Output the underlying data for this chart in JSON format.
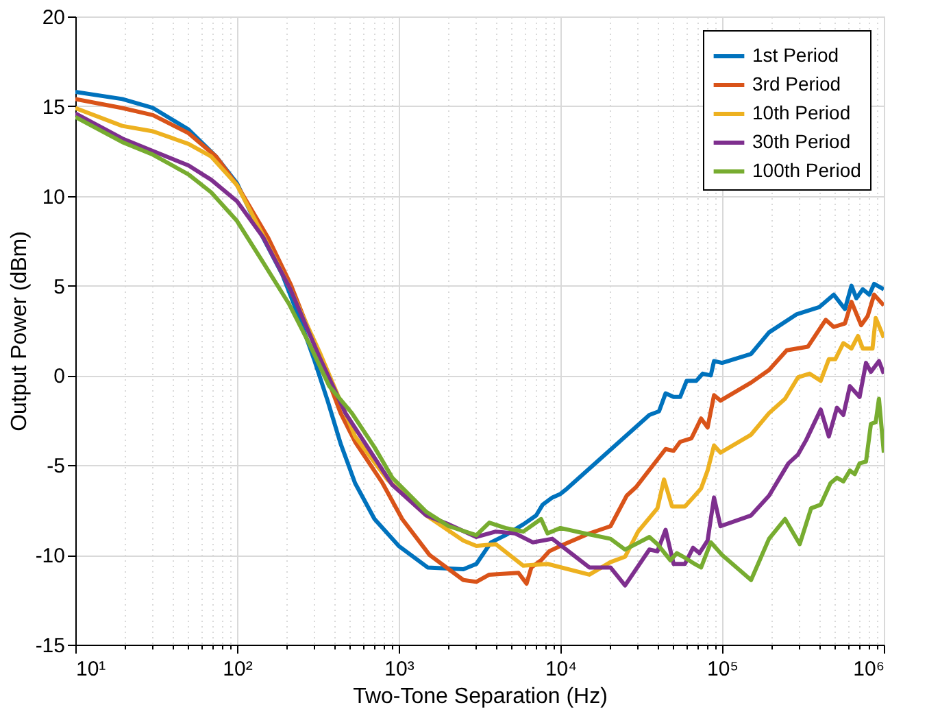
{
  "chart_data": {
    "type": "line",
    "xlabel": "Two-Tone Separation (Hz)",
    "ylabel": "Output Power (dBm)",
    "log": "x",
    "grid": true,
    "legend": "top right",
    "line_style": "solid",
    "xlim": [
      10,
      1000000
    ],
    "xticks": [
      {
        "value": 10,
        "label": "10¹"
      },
      {
        "value": 20,
        "label": null
      },
      {
        "value": 30,
        "label": null
      },
      {
        "value": 40,
        "label": null
      },
      {
        "value": 50,
        "label": null
      },
      {
        "value": 60,
        "label": null
      },
      {
        "value": 70,
        "label": null
      },
      {
        "value": 80,
        "label": null
      },
      {
        "value": 90,
        "label": null
      },
      {
        "value": 100,
        "label": "10²"
      },
      {
        "value": 200,
        "label": null
      },
      {
        "value": 300,
        "label": null
      },
      {
        "value": 400,
        "label": null
      },
      {
        "value": 500,
        "label": null
      },
      {
        "value": 600,
        "label": null
      },
      {
        "value": 700,
        "label": null
      },
      {
        "value": 800,
        "label": null
      },
      {
        "value": 900,
        "label": null
      },
      {
        "value": 1000,
        "label": "10³"
      },
      {
        "value": 2000,
        "label": null
      },
      {
        "value": 3000,
        "label": null
      },
      {
        "value": 4000,
        "label": null
      },
      {
        "value": 5000,
        "label": null
      },
      {
        "value": 6000,
        "label": null
      },
      {
        "value": 7000,
        "label": null
      },
      {
        "value": 8000,
        "label": null
      },
      {
        "value": 9000,
        "label": null
      },
      {
        "value": 10000,
        "label": "10⁴"
      },
      {
        "value": 20000,
        "label": null
      },
      {
        "value": 30000,
        "label": null
      },
      {
        "value": 40000,
        "label": null
      },
      {
        "value": 50000,
        "label": null
      },
      {
        "value": 60000,
        "label": null
      },
      {
        "value": 70000,
        "label": null
      },
      {
        "value": 80000,
        "label": null
      },
      {
        "value": 90000,
        "label": null
      },
      {
        "value": 100000,
        "label": "10⁵"
      },
      {
        "value": 200000,
        "label": null
      },
      {
        "value": 300000,
        "label": null
      },
      {
        "value": 400000,
        "label": null
      },
      {
        "value": 500000,
        "label": null
      },
      {
        "value": 600000,
        "label": null
      },
      {
        "value": 700000,
        "label": null
      },
      {
        "value": 800000,
        "label": null
      },
      {
        "value": 900000,
        "label": null
      },
      {
        "value": 1000000,
        "label": "10⁶"
      }
    ],
    "ylim": [
      -15,
      20
    ],
    "yticks": [
      -15,
      -10,
      -5,
      0,
      5,
      10,
      15,
      20
    ],
    "series": [
      {
        "name": "1st Period",
        "color": "#0072bd",
        "x": [
          10,
          19.5,
          30.2,
          50.1,
          74.1,
          100,
          135,
          191,
          245,
          302,
          363,
          437,
          537,
          708,
          1000,
          1510,
          2510,
          3020,
          3720,
          4570,
          5890,
          7080,
          7760,
          8910,
          10000,
          11000,
          35500,
          40700,
          44700,
          50100,
          55000,
          60300,
          69200,
          75900,
          85100,
          89100,
          100000,
          151000,
          195000,
          288000,
          398000,
          490000,
          575000,
          631000,
          676000,
          741000,
          813000,
          871000,
          1000000
        ],
        "values": [
          15.8,
          15.4,
          14.9,
          13.7,
          12.2,
          10.7,
          8.2,
          5.6,
          3.1,
          0.8,
          -1.4,
          -3.8,
          -6,
          -8,
          -9.5,
          -10.7,
          -10.8,
          -10.5,
          -9.3,
          -8.9,
          -8.3,
          -7.8,
          -7.2,
          -6.8,
          -6.6,
          -6.3,
          -2.2,
          -2.0,
          -1.0,
          -1.2,
          -1.2,
          -0.3,
          -0.3,
          0.1,
          0,
          0.8,
          0.7,
          1.2,
          2.4,
          3.4,
          3.8,
          4.5,
          3.7,
          5.0,
          4.3,
          4.8,
          4.5,
          5.1,
          4.8
        ]
      },
      {
        "name": "3rd Period",
        "color": "#d95319",
        "x": [
          10,
          19.5,
          30.2,
          50.1,
          74.1,
          100,
          155,
          214,
          324,
          437,
          537,
          794,
          1050,
          1550,
          2510,
          3020,
          3630,
          5500,
          6170,
          6610,
          7590,
          8510,
          10000,
          15100,
          20400,
          25700,
          29500,
          44700,
          50100,
          55000,
          64600,
          74100,
          81300,
          89100,
          97700,
          151000,
          195000,
          251000,
          339000,
          437000,
          490000,
          575000,
          631000,
          724000,
          794000,
          871000,
          1000000
        ],
        "values": [
          15.4,
          14.9,
          14.5,
          13.5,
          12.2,
          10.6,
          7.7,
          5.1,
          1.0,
          -2.1,
          -3.7,
          -6,
          -8,
          -10,
          -11.4,
          -11.5,
          -11.1,
          -11,
          -11.6,
          -10.7,
          -10.3,
          -9.8,
          -9.5,
          -8.8,
          -8.4,
          -6.7,
          -6.2,
          -4.1,
          -4.2,
          -3.7,
          -3.5,
          -2.4,
          -2.9,
          -1.1,
          -1.4,
          -0.4,
          0.3,
          1.4,
          1.6,
          3.1,
          2.7,
          2.9,
          4.1,
          2.8,
          3.3,
          4.5,
          3.9
        ]
      },
      {
        "name": "10th Period",
        "color": "#edb120",
        "x": [
          10,
          19.5,
          30.2,
          50.1,
          69.2,
          100,
          145,
          214,
          324,
          468,
          537,
          851,
          1480,
          2510,
          3020,
          3980,
          5890,
          8320,
          15100,
          20400,
          25100,
          30200,
          39800,
          43700,
          49000,
          58900,
          66100,
          74100,
          81300,
          89100,
          97700,
          151000,
          195000,
          245000,
          295000,
          347000,
          407000,
          457000,
          501000,
          562000,
          631000,
          692000,
          741000,
          851000,
          891000,
          1000000
        ],
        "values": [
          14.9,
          13.9,
          13.6,
          12.9,
          12.2,
          10.6,
          7.8,
          4.8,
          1.3,
          -2.1,
          -3.4,
          -5.8,
          -7.8,
          -9.2,
          -9.5,
          -9.4,
          -10.6,
          -10.5,
          -11.1,
          -10.4,
          -10.1,
          -8.7,
          -7.4,
          -5.8,
          -7.3,
          -7.3,
          -6.8,
          -6.3,
          -5.3,
          -3.9,
          -4.3,
          -3.3,
          -2.1,
          -1.3,
          -0.1,
          0.1,
          -0.3,
          0.9,
          0.9,
          1.8,
          1.5,
          2.2,
          1.5,
          1.5,
          3.2,
          2.1
        ]
      },
      {
        "name": "30th Period",
        "color": "#7e2f8e",
        "x": [
          10,
          19.5,
          30.2,
          50.1,
          69.2,
          100,
          145,
          214,
          324,
          468,
          912,
          1480,
          2040,
          3020,
          3980,
          5250,
          6760,
          8910,
          15100,
          20400,
          25100,
          35500,
          39800,
          44700,
          50100,
          58900,
          66100,
          72400,
          81300,
          89100,
          97700,
          151000,
          195000,
          257000,
          295000,
          331000,
          407000,
          457000,
          513000,
          562000,
          617000,
          708000,
          776000,
          832000,
          933000,
          1000000
        ],
        "values": [
          14.6,
          13.2,
          12.5,
          11.7,
          10.9,
          9.7,
          7.7,
          4.8,
          1.0,
          -2.1,
          -6.1,
          -7.8,
          -8.3,
          -9.0,
          -8.7,
          -8.8,
          -9.3,
          -9.1,
          -10.7,
          -10.7,
          -11.7,
          -9.7,
          -9.8,
          -8.6,
          -10.5,
          -10.5,
          -9.6,
          -9.9,
          -9.2,
          -6.8,
          -8.4,
          -7.8,
          -6.7,
          -4.9,
          -4.4,
          -3.6,
          -1.9,
          -3.4,
          -1.8,
          -2.2,
          -0.6,
          -1.2,
          0.7,
          0.2,
          0.8,
          0.1
        ]
      },
      {
        "name": "100th Period",
        "color": "#77ac30",
        "x": [
          10,
          19.5,
          30.2,
          50.1,
          69.2,
          100,
          145,
          209,
          282,
          372,
          513,
          708,
          912,
          1480,
          2040,
          3020,
          3630,
          4570,
          5890,
          7590,
          8320,
          10000,
          14100,
          20400,
          25100,
          35500,
          39800,
          47900,
          52500,
          57500,
          67600,
          74100,
          85100,
          100000,
          151000,
          195000,
          245000,
          302000,
          355000,
          407000,
          468000,
          513000,
          562000,
          617000,
          661000,
          708000,
          776000,
          832000,
          891000,
          933000,
          1000000
        ],
        "values": [
          14.4,
          13.0,
          12.3,
          11.2,
          10.2,
          8.6,
          6.3,
          4.0,
          1.7,
          -0.6,
          -2.1,
          -4,
          -5.7,
          -7.6,
          -8.4,
          -8.9,
          -8.2,
          -8.5,
          -8.7,
          -8.0,
          -8.8,
          -8.5,
          -8.8,
          -9.1,
          -9.7,
          -9.0,
          -9.4,
          -10.3,
          -9.9,
          -10.1,
          -10.5,
          -10.7,
          -9.3,
          -10,
          -11.4,
          -9.1,
          -8.0,
          -9.4,
          -7.4,
          -7.2,
          -6.0,
          -5.7,
          -5.9,
          -5.3,
          -5.5,
          -4.9,
          -4.8,
          -2.7,
          -2.6,
          -1.3,
          -4.3
        ]
      }
    ]
  }
}
